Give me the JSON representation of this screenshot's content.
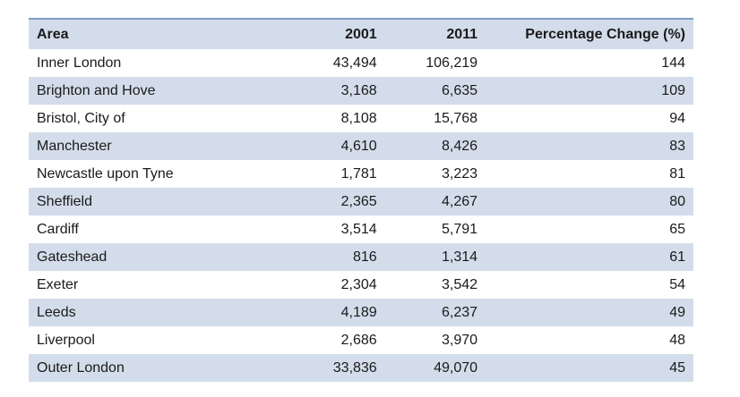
{
  "table": {
    "headers": [
      "Area",
      "2001",
      "2011",
      "Percentage Change (%)"
    ],
    "rows": [
      [
        "Inner London",
        "43,494",
        "106,219",
        "144"
      ],
      [
        "Brighton and Hove",
        "3,168",
        "6,635",
        "109"
      ],
      [
        "Bristol, City of",
        "8,108",
        "15,768",
        "94"
      ],
      [
        "Manchester",
        "4,610",
        "8,426",
        "83"
      ],
      [
        "Newcastle upon Tyne",
        "1,781",
        "3,223",
        "81"
      ],
      [
        "Sheffield",
        "2,365",
        "4,267",
        "80"
      ],
      [
        "Cardiff",
        "3,514",
        "5,791",
        "65"
      ],
      [
        "Gateshead",
        "816",
        "1,314",
        "61"
      ],
      [
        "Exeter",
        "2,304",
        "3,542",
        "54"
      ],
      [
        "Leeds",
        "4,189",
        "6,237",
        "49"
      ],
      [
        "Liverpool",
        "2,686",
        "3,970",
        "48"
      ],
      [
        "Outer London",
        "33,836",
        "49,070",
        "45"
      ]
    ]
  },
  "colors": {
    "stripe": "#d3dcea",
    "header_top_border": "#7f9cc6"
  }
}
